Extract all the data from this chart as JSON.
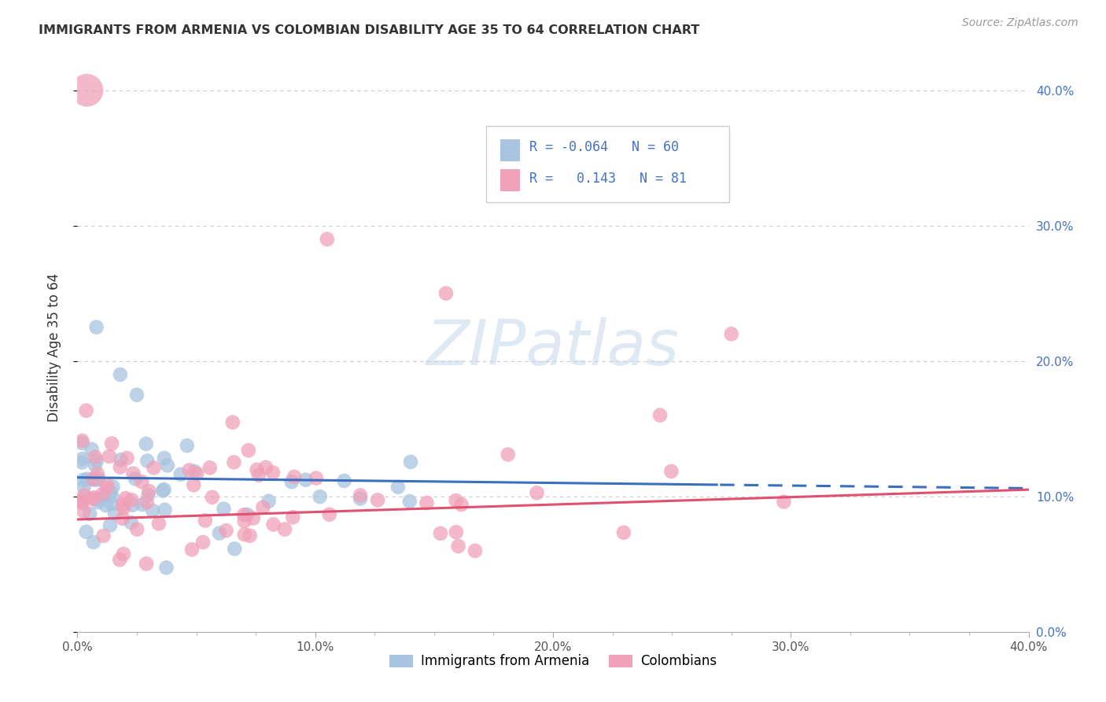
{
  "title": "IMMIGRANTS FROM ARMENIA VS COLOMBIAN DISABILITY AGE 35 TO 64 CORRELATION CHART",
  "source": "Source: ZipAtlas.com",
  "ylabel": "Disability Age 35 to 64",
  "xlim": [
    0.0,
    0.4
  ],
  "ylim": [
    0.0,
    0.42
  ],
  "ytick_labels": [
    "0.0%",
    "10.0%",
    "20.0%",
    "30.0%",
    "40.0%"
  ],
  "ytick_vals": [
    0.0,
    0.1,
    0.2,
    0.3,
    0.4
  ],
  "xtick_major": [
    0.0,
    0.1,
    0.2,
    0.3,
    0.4
  ],
  "xtick_labels": [
    "0.0%",
    "10.0%",
    "20.0%",
    "30.0%",
    "40.0%"
  ],
  "armenia_R": -0.064,
  "armenia_N": 60,
  "colombia_R": 0.143,
  "colombia_N": 81,
  "armenia_color": "#a8c4e0",
  "colombia_color": "#f0a0b8",
  "armenia_line_color": "#3a6fbf",
  "colombia_line_color": "#e05070",
  "watermark": "ZIPatlas",
  "background_color": "#ffffff",
  "grid_color": "#cccccc",
  "title_color": "#333333",
  "source_color": "#999999",
  "right_axis_color": "#4472c4",
  "legend_text_color": "#4472c4",
  "armenia_line_style": "solid_then_dashed",
  "colombia_line_style": "solid"
}
